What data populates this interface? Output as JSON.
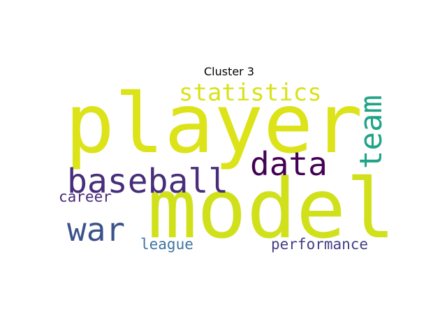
{
  "title": "Cluster 3",
  "cloud": {
    "words": [
      {
        "id": "player",
        "text": "player",
        "color": "#dce319"
      },
      {
        "id": "model",
        "text": "model",
        "color": "#d0e11c"
      },
      {
        "id": "statistics",
        "text": "statistics",
        "color": "#d8e219"
      },
      {
        "id": "data",
        "text": "data",
        "color": "#440154"
      },
      {
        "id": "team",
        "text": "team",
        "color": "#20a486"
      },
      {
        "id": "baseball",
        "text": "baseball",
        "color": "#472d7b"
      },
      {
        "id": "war",
        "text": "war",
        "color": "#3b528b"
      },
      {
        "id": "career",
        "text": "career",
        "color": "#482878"
      },
      {
        "id": "league",
        "text": "league",
        "color": "#3e74a0"
      },
      {
        "id": "performance",
        "text": "performance",
        "color": "#433e85"
      }
    ]
  }
}
